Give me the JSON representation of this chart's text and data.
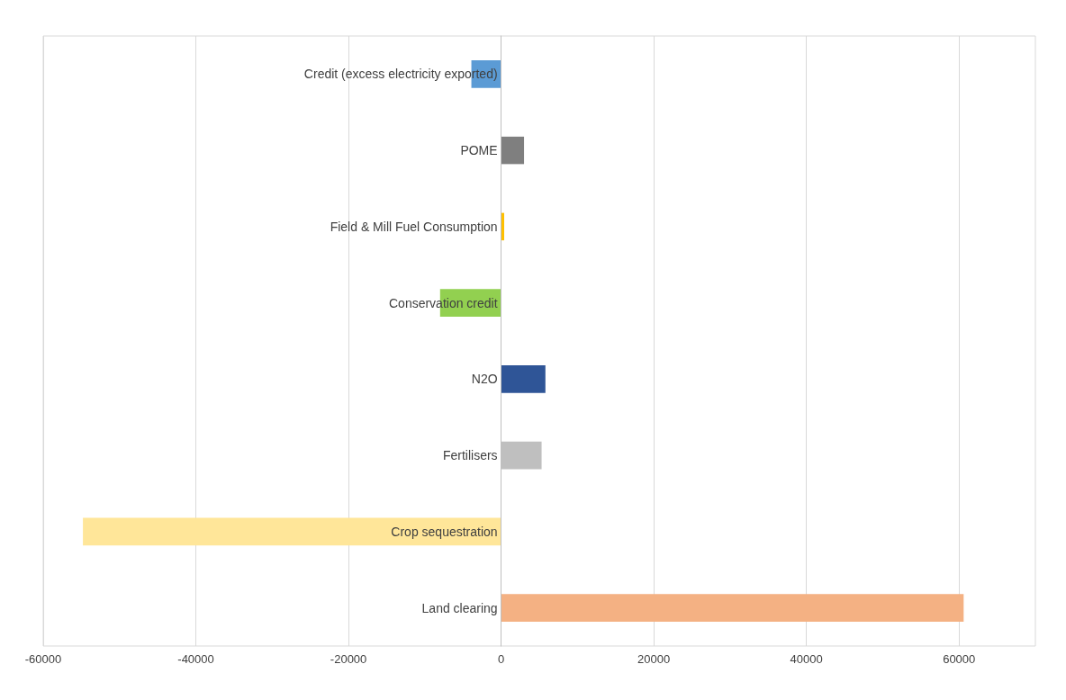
{
  "chart_data": {
    "type": "bar",
    "orientation": "horizontal",
    "categories": [
      "Credit (excess electricity exported)",
      "POME",
      "Field & Mill Fuel Consumption",
      "Conservation credit",
      "N2O",
      "Fertilisers",
      "Crop sequestration",
      "Land clearing"
    ],
    "values": [
      -3900,
      3000,
      400,
      -8000,
      5800,
      5300,
      -54800,
      60600
    ],
    "colors": [
      "#5b9bd5",
      "#7f7f7f",
      "#ffc000",
      "#92d050",
      "#2f5597",
      "#bfbfbf",
      "#ffe699",
      "#f4b183"
    ],
    "xlim": [
      -60000,
      70000
    ],
    "xticks": [
      -60000,
      -40000,
      -20000,
      0,
      20000,
      40000,
      60000
    ],
    "grid": "x"
  }
}
